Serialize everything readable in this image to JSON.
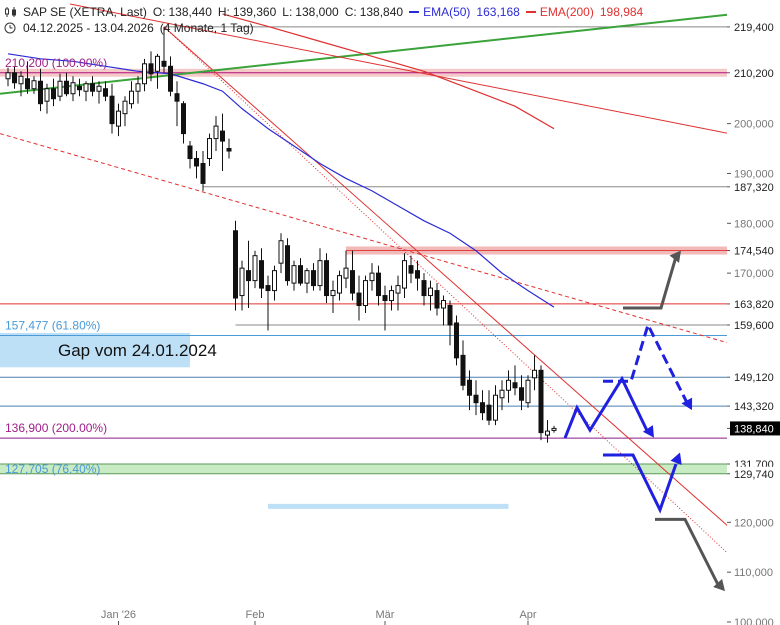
{
  "header": {
    "instrument": "SAP SE (XETRA, Last)",
    "ohlc": {
      "o_label": "O:",
      "o": "138,440",
      "h_label": "H:",
      "h": "139,360",
      "l_label": "L:",
      "l": "138,000",
      "c_label": "C:",
      "c": "138,840"
    },
    "ema50": {
      "label": "EMA(50)",
      "value": "163,168",
      "color": "#2b2bd6"
    },
    "ema200": {
      "label": "EMA(200)",
      "value": "198,984",
      "color": "#e03030"
    },
    "date_range": "04.12.2025 - 13.04.2026",
    "period": "(4 Monate, 1 Tag)",
    "icons": [
      "candlestick-chart-icon",
      "clock-icon"
    ]
  },
  "chart_data": {
    "type": "candlestick",
    "y_axis": {
      "min": 100000,
      "max": 224000,
      "ticks": [
        {
          "value": 219400,
          "label": "219,400",
          "boxed": true
        },
        {
          "value": 210200,
          "label": "210,200",
          "boxed": true
        },
        {
          "value": 200000,
          "label": "200,000",
          "boxed": false
        },
        {
          "value": 190000,
          "label": "190,000",
          "boxed": false
        },
        {
          "value": 187320,
          "label": "187,320",
          "boxed": true
        },
        {
          "value": 180000,
          "label": "180,000",
          "boxed": false
        },
        {
          "value": 174540,
          "label": "174,540",
          "boxed": true
        },
        {
          "value": 170000,
          "label": "170,000",
          "boxed": false
        },
        {
          "value": 163820,
          "label": "163,820",
          "boxed": true
        },
        {
          "value": 159600,
          "label": "159,600",
          "boxed": true
        },
        {
          "value": 149120,
          "label": "149,120",
          "boxed": true
        },
        {
          "value": 143320,
          "label": "143,320",
          "boxed": true
        },
        {
          "value": 138840,
          "label": "138,840",
          "boxed": true,
          "current": true
        },
        {
          "value": 131700,
          "label": "131,700",
          "boxed": true
        },
        {
          "value": 129740,
          "label": "129,740",
          "boxed": true
        },
        {
          "value": 120000,
          "label": "120,000",
          "boxed": false
        },
        {
          "value": 110000,
          "label": "110,000",
          "boxed": false
        },
        {
          "value": 100000,
          "label": "100,000",
          "boxed": false
        }
      ]
    },
    "x_axis": {
      "labels": [
        {
          "label": "Jan '26",
          "index": 17
        },
        {
          "label": "Feb",
          "index": 38
        },
        {
          "label": "Mär",
          "index": 58
        },
        {
          "label": "Apr",
          "index": 80
        }
      ]
    },
    "candles": [
      [
        209000,
        211200,
        207500,
        210200
      ],
      [
        210200,
        211500,
        207000,
        208200
      ],
      [
        208000,
        210500,
        205500,
        209500
      ],
      [
        209000,
        212500,
        206000,
        207000
      ],
      [
        207000,
        209500,
        206000,
        208600
      ],
      [
        208500,
        211000,
        202500,
        204000
      ],
      [
        204500,
        208000,
        202000,
        207000
      ],
      [
        207000,
        209000,
        203500,
        205000
      ],
      [
        205500,
        210000,
        204500,
        208500
      ],
      [
        208500,
        210200,
        205500,
        206000
      ],
      [
        206000,
        209500,
        204500,
        208200
      ],
      [
        207500,
        209000,
        205500,
        206800
      ],
      [
        206500,
        208500,
        204500,
        208000
      ],
      [
        208000,
        209500,
        205500,
        206500
      ],
      [
        206500,
        208500,
        204000,
        207500
      ],
      [
        207000,
        208500,
        204500,
        205500
      ],
      [
        205500,
        208000,
        198000,
        200000
      ],
      [
        199500,
        204000,
        197500,
        202500
      ],
      [
        202000,
        205500,
        199500,
        204500
      ],
      [
        204000,
        208500,
        203000,
        206500
      ],
      [
        206500,
        209500,
        204000,
        208000
      ],
      [
        208000,
        213000,
        206500,
        212000
      ],
      [
        212000,
        214500,
        208500,
        210000
      ],
      [
        210500,
        214000,
        207000,
        213500
      ],
      [
        212500,
        219400,
        210200,
        211500
      ],
      [
        211500,
        213500,
        205500,
        206500
      ],
      [
        206000,
        208500,
        199500,
        204500
      ],
      [
        204000,
        204500,
        196000,
        198000
      ],
      [
        195500,
        196500,
        191000,
        193000
      ],
      [
        193000,
        194500,
        189000,
        191500
      ],
      [
        192000,
        194500,
        186500,
        188000
      ],
      [
        193000,
        198000,
        191500,
        197000
      ],
      [
        197000,
        201500,
        194500,
        199500
      ],
      [
        198500,
        202000,
        190500,
        196500
      ],
      [
        195000,
        197000,
        193000,
        194500
      ],
      [
        178500,
        180500,
        162500,
        165000
      ],
      [
        165500,
        172500,
        162500,
        171000
      ],
      [
        170500,
        176500,
        163000,
        168500
      ],
      [
        168500,
        174500,
        167000,
        173500
      ],
      [
        172500,
        175000,
        165000,
        167000
      ],
      [
        167500,
        169500,
        158500,
        166500
      ],
      [
        166500,
        171500,
        164500,
        170500
      ],
      [
        172000,
        178000,
        170000,
        176500
      ],
      [
        175500,
        177000,
        167500,
        168500
      ],
      [
        168000,
        172500,
        166500,
        171500
      ],
      [
        171500,
        173000,
        167500,
        168000
      ],
      [
        168000,
        171000,
        166000,
        170500
      ],
      [
        170500,
        172000,
        166500,
        167500
      ],
      [
        167500,
        175000,
        166500,
        172500
      ],
      [
        172500,
        174000,
        164000,
        165500
      ],
      [
        165500,
        168500,
        162000,
        166500
      ],
      [
        166000,
        170500,
        164500,
        169500
      ],
      [
        169000,
        174500,
        167000,
        171000
      ],
      [
        170500,
        174500,
        164500,
        166000
      ],
      [
        166000,
        169500,
        160500,
        163500
      ],
      [
        163500,
        169500,
        162000,
        168500
      ],
      [
        168500,
        172000,
        166500,
        170000
      ],
      [
        170000,
        171500,
        163500,
        165500
      ],
      [
        165500,
        167500,
        158500,
        164500
      ],
      [
        164500,
        167500,
        162500,
        166500
      ],
      [
        166000,
        169500,
        162500,
        167500
      ],
      [
        167000,
        174000,
        165000,
        172500
      ],
      [
        171500,
        173500,
        168000,
        170000
      ],
      [
        170500,
        172500,
        166500,
        169000
      ],
      [
        168500,
        170000,
        163500,
        165500
      ],
      [
        165500,
        168500,
        162500,
        167000
      ],
      [
        166500,
        168000,
        161500,
        163000
      ],
      [
        163000,
        165500,
        159500,
        164500
      ],
      [
        163500,
        164500,
        155500,
        159600
      ],
      [
        160000,
        161500,
        151500,
        153000
      ],
      [
        153500,
        156500,
        146500,
        147500
      ],
      [
        148500,
        150500,
        142500,
        145500
      ],
      [
        145500,
        148500,
        141500,
        144000
      ],
      [
        144000,
        146500,
        140500,
        142000
      ],
      [
        143500,
        146500,
        139500,
        140500
      ],
      [
        140500,
        147500,
        139500,
        145500
      ],
      [
        145000,
        148500,
        142500,
        146500
      ],
      [
        146500,
        150500,
        144000,
        148500
      ],
      [
        148000,
        151500,
        145500,
        147000
      ],
      [
        147000,
        149500,
        142500,
        144500
      ],
      [
        144000,
        149500,
        143000,
        148500
      ],
      [
        149000,
        153500,
        146500,
        150500
      ],
      [
        150500,
        151500,
        136500,
        138000
      ],
      [
        137500,
        140500,
        136000,
        138300
      ],
      [
        138440,
        139360,
        138000,
        138840
      ]
    ],
    "ema50": [
      [
        0,
        214000
      ],
      [
        5,
        213000
      ],
      [
        10,
        212500
      ],
      [
        15,
        211500
      ],
      [
        20,
        210500
      ],
      [
        25,
        210000
      ],
      [
        30,
        208000
      ],
      [
        33,
        206500
      ],
      [
        36,
        203000
      ],
      [
        40,
        199000
      ],
      [
        44,
        195500
      ],
      [
        48,
        192000
      ],
      [
        52,
        189000
      ],
      [
        56,
        186500
      ],
      [
        60,
        183500
      ],
      [
        64,
        180500
      ],
      [
        68,
        178000
      ],
      [
        72,
        174500
      ],
      [
        76,
        170000
      ],
      [
        80,
        166500
      ],
      [
        84,
        163168
      ]
    ],
    "ema200": [
      [
        33,
        222000
      ],
      [
        40,
        219500
      ],
      [
        48,
        216500
      ],
      [
        56,
        213500
      ],
      [
        64,
        210500
      ],
      [
        72,
        206500
      ],
      [
        78,
        203500
      ],
      [
        84,
        198984
      ]
    ],
    "levels": [
      {
        "name": "fib-100-level",
        "value": 210200,
        "label": "210,200 (100.00%)",
        "color": "#b0107a",
        "label_color": "#a0208a",
        "band": 1600
      },
      {
        "name": "level-219400",
        "value": 219400,
        "color": "#888888",
        "from_index": 24
      },
      {
        "name": "level-187320",
        "value": 187320,
        "color": "#888888",
        "from_index": 30
      },
      {
        "name": "zone-174540",
        "value": 174540,
        "color": "#e04040",
        "band": 1600,
        "from_index": 52
      },
      {
        "name": "level-163820",
        "value": 163820,
        "color": "#e03030"
      },
      {
        "name": "level-159600",
        "value": 159600,
        "color": "#888888",
        "from_index": 35
      },
      {
        "name": "fib-61-8-level",
        "value": 157477,
        "label": "157,477 (61.80%)",
        "color": "#4a9ad8",
        "label_color": "#4a9ad8"
      },
      {
        "name": "level-149120",
        "value": 149120,
        "color": "#4a7fb0"
      },
      {
        "name": "level-143320",
        "value": 143320,
        "color": "#4a7fb0"
      },
      {
        "name": "fib-200-level",
        "value": 136900,
        "label": "136,900 (200.00%)",
        "color": "#8a1a8a",
        "label_color": "#a0208a"
      },
      {
        "name": "zone-130-fib-76-4",
        "value": 129740,
        "value_hi": 131700,
        "label": "127,705 (76.40%)",
        "color": "#5a9a5a",
        "label_color": "#4a9ad8"
      }
    ],
    "gap": {
      "label": "Gap vom 24.01.2024",
      "from": 151100,
      "to": 158000,
      "to_index": 28,
      "bar_value": 123200,
      "bar_from_index": 40,
      "bar_to_index": 77
    }
  }
}
